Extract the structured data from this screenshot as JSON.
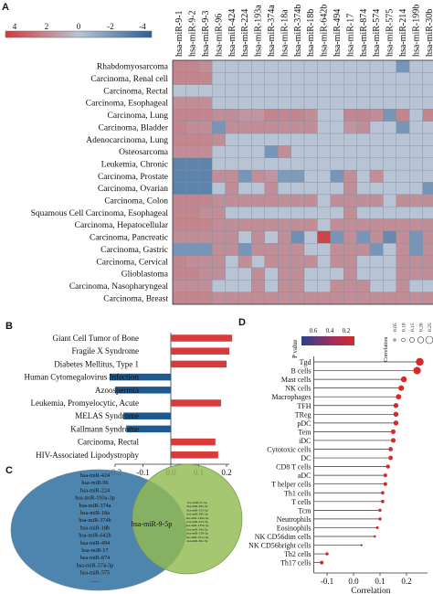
{
  "panels": {
    "a": "A",
    "b": "B",
    "c": "C",
    "d": "D"
  },
  "heatmap": {
    "type": "heatmap",
    "legend_ticks": [
      "4",
      "2",
      "0",
      "-2",
      "-4"
    ],
    "columns": [
      "hsa-miR-9-1",
      "hsa-miR-9-2",
      "hsa-miR-9-3",
      "hsa-miR-96",
      "hsa-miR-424",
      "hsa-miR-224",
      "hsa-miR-193a",
      "hsa-miR-374a",
      "hsa-miR-18a",
      "hsa-miR-374b",
      "hsa-miR-18b",
      "hsa-miR-642b",
      "hsa-miR-494",
      "hsa-miR-17",
      "hsa-miR-874",
      "hsa-miR-574",
      "hsa-miR-575",
      "hsa-miR-214",
      "hsa-miR-199b",
      "hsa-miR-30b"
    ],
    "rows": [
      "Rhabdomyosarcoma",
      "Carcinoma, Renal cell",
      "Carcinoma, Rectal",
      "Carcinoma, Esophageal",
      "Carcinoma, Lung",
      "Carcinoma, Bladder",
      "Adenocarcinoma, Lung",
      "Osteosarcoma",
      "Leukemia, Chronic",
      "Carcinoma, Prostate",
      "Carcinoma, Ovarian",
      "Carcinoma, Colon",
      "Squamous Cell Carcinoma, Esophageal",
      "Carcinoma, Hepatocellular",
      "Carcinoma, Pancreatic",
      "Carcinoma, Gastric",
      "Carcinoma, Cervical",
      "Glioblastoma",
      "Carcinoma, Nasopharyngeal",
      "Carcinoma, Breast"
    ],
    "values": [
      [
        1.6,
        1.6,
        1.4,
        0,
        0,
        0,
        0,
        0,
        0,
        0,
        0,
        0,
        0,
        0,
        0,
        0,
        0,
        -1.6,
        0,
        0
      ],
      [
        1.6,
        1.6,
        1.6,
        0,
        0,
        0,
        0,
        0,
        0,
        0,
        0,
        0,
        0,
        0,
        0,
        0,
        0,
        0,
        0,
        0
      ],
      [
        0,
        0,
        0,
        0,
        0,
        0,
        0,
        0,
        0,
        0,
        0,
        0,
        0,
        0,
        0,
        0,
        0,
        0,
        0,
        0
      ],
      [
        1.4,
        1.4,
        1.4,
        0,
        0,
        0,
        0,
        0,
        0,
        0,
        0,
        0,
        0,
        0,
        0,
        0,
        0,
        0,
        0,
        0
      ],
      [
        1.6,
        1.6,
        1.6,
        1.4,
        1.4,
        1.2,
        1.2,
        1.6,
        1.6,
        1.6,
        1.4,
        0,
        0,
        1.6,
        1.6,
        1.4,
        -1.6,
        1.6,
        0,
        1.6
      ],
      [
        1.6,
        1.4,
        1.4,
        -1.6,
        1.4,
        1.4,
        1.4,
        1.4,
        1.4,
        1.4,
        1.4,
        0,
        0,
        1.2,
        1.4,
        0,
        0,
        -1.6,
        0,
        0
      ],
      [
        1.6,
        1.6,
        1.6,
        1.4,
        0,
        0,
        0,
        0,
        0,
        0,
        0,
        0,
        0,
        0,
        0,
        0,
        0,
        0,
        0,
        0
      ],
      [
        1.4,
        1.4,
        1.4,
        0,
        0,
        0,
        0,
        -1.6,
        1.4,
        0,
        0,
        0,
        0,
        0,
        0,
        0,
        0,
        0,
        0,
        0
      ],
      [
        -2.2,
        -2.2,
        -2.2,
        0,
        0,
        0,
        0,
        0,
        0,
        0,
        0,
        0,
        0,
        0,
        0,
        0,
        0,
        0,
        0,
        0
      ],
      [
        -2.2,
        -2.2,
        -2.2,
        1.4,
        1.4,
        -1.6,
        1.4,
        1.2,
        -1.4,
        -1.4,
        0,
        0,
        -1.6,
        1.4,
        0,
        1.4,
        0,
        0,
        0,
        0
      ],
      [
        -2.2,
        -2.2,
        -2.2,
        0,
        1.4,
        0,
        0,
        1.4,
        0,
        0,
        0,
        0,
        0,
        1.4,
        0,
        0,
        0,
        0,
        0,
        -1.6
      ],
      [
        1.6,
        1.6,
        1.6,
        1.4,
        1.4,
        1.4,
        1.4,
        1.4,
        1.4,
        1.4,
        1.4,
        0,
        1.4,
        1.4,
        1.4,
        1.4,
        0,
        1.4,
        1.4,
        1.4
      ],
      [
        1.6,
        1.6,
        1.4,
        1.4,
        0,
        0,
        0,
        0,
        0,
        0,
        0,
        0,
        0,
        1.4,
        0,
        0,
        0,
        0,
        0,
        0
      ],
      [
        1.6,
        1.6,
        1.6,
        1.4,
        1.4,
        1.4,
        1.4,
        1.4,
        1.4,
        1.4,
        1.4,
        0,
        1.4,
        1.4,
        1.4,
        1.4,
        1.4,
        1.4,
        1.4,
        1.4
      ],
      [
        1.4,
        1.4,
        1.4,
        1.4,
        1.4,
        0,
        1.4,
        0,
        1.4,
        -1.8,
        0,
        3.2,
        -1.6,
        1.4,
        -1.6,
        1.4,
        -2.0,
        1.4,
        -1.6,
        1.4
      ],
      [
        -1.6,
        -1.6,
        -1.6,
        1.4,
        1.4,
        -1.6,
        1.4,
        1.4,
        1.4,
        1.4,
        0,
        0,
        1.4,
        1.4,
        1.4,
        -1.6,
        0,
        1.4,
        -1.6,
        1.4
      ],
      [
        1.6,
        1.4,
        1.4,
        1.4,
        0,
        1.4,
        0,
        1.4,
        1.4,
        1.4,
        1.4,
        0,
        1.4,
        1.4,
        0,
        0,
        0,
        1.4,
        1.4,
        1.4
      ],
      [
        1.6,
        1.6,
        1.4,
        1.4,
        0,
        0,
        1.4,
        0,
        1.4,
        1.4,
        0,
        0,
        0,
        1.4,
        0,
        0,
        0,
        1.4,
        1.4,
        1.4
      ],
      [
        1.4,
        1.4,
        1.4,
        0,
        0,
        0,
        1.4,
        0,
        1.4,
        1.4,
        0,
        0,
        1.4,
        1.4,
        1.4,
        0,
        0,
        1.4,
        0,
        0
      ],
      [
        1.6,
        1.6,
        1.6,
        1.4,
        1.4,
        1.4,
        1.4,
        1.4,
        1.4,
        1.4,
        1.4,
        1.4,
        1.4,
        1.4,
        1.4,
        1.4,
        1.4,
        1.4,
        1.4,
        1.4
      ]
    ],
    "colors": {
      "high": "#cf3b3b",
      "mid": "#b8c4d4",
      "low": "#2b5f94"
    }
  },
  "chart_b": {
    "type": "bar",
    "categories": [
      "Giant Cell Tumor of Bone",
      "Fragile X Syndrome",
      "Diabetes Mellitus, Type 1",
      "Human Cytomegalovirus Infection",
      "Azoospermia",
      "Leukemia, Promyelocytic, Acute",
      "MELAS Syndrome",
      "Kallmann Syndrome",
      "Carcinoma, Rectal",
      "HIV-Associated Lipodystrophy"
    ],
    "values": [
      0.22,
      0.21,
      0.2,
      -0.22,
      -0.2,
      0.18,
      -0.17,
      -0.16,
      0.16,
      0.17
    ],
    "xlim": [
      -0.2,
      0.2
    ],
    "xticks": [
      "-0.2",
      "-0.1",
      "0.0",
      "0.1",
      "0.2"
    ],
    "colors": {
      "positive": "#d93a3a",
      "negative": "#1e5a8e"
    }
  },
  "venn": {
    "left_items": [
      "hsa-miR-424",
      "hsa-miR-96",
      "hsa-miR-224",
      "hsa-miR-193a-3p",
      "hsa-miR-374a",
      "hsa-miR-18a",
      "hsa-miR-374b",
      "hsa-miR-18b",
      "hsa-miR-642b",
      "hsa-miR-494",
      "hsa-miR-17",
      "hsa-miR-874",
      "hsa-miR-574-5p",
      "hsa-miR-575",
      "......"
    ],
    "center_item": "hsa-miR-9-5p",
    "right_items": [
      "hsa-miR-21-5p",
      "hsa-miR-26a-5p",
      "hsa-miR-155-5p",
      "hsa-miR-29b-3p",
      "hsa-miR-146a-5p",
      "hsa-miR-223-3p",
      "hsa-miR-125b-5p",
      "hsa-miR-34a-5p",
      "hsa-miR-150-5p",
      "hsa-miR-181a-5p",
      "hsa-miR-30c-5p"
    ],
    "colors": {
      "left": "#3b78a5",
      "right": "#93bb53",
      "center_text": "#e0332b"
    }
  },
  "chart_d": {
    "type": "scatter",
    "categories": [
      "Tgd",
      "B cells",
      "Mast cells",
      "NK cells",
      "Macrophages",
      "TFH",
      "TReg",
      "pDC",
      "Tem",
      "iDC",
      "Cytotoxic cells",
      "DC",
      "CD8 T cells",
      "aDC",
      "T helper cells",
      "Th1 cells",
      "T cells",
      "Tcm",
      "Neutrophils",
      "Eosinophils",
      "NK CD56dim cells",
      "NK CD56bright cells",
      "Th2 cells",
      "Th17 cells"
    ],
    "values": [
      0.25,
      0.24,
      0.19,
      0.18,
      0.17,
      0.16,
      0.16,
      0.16,
      0.15,
      0.15,
      0.14,
      0.14,
      0.13,
      0.12,
      0.12,
      0.11,
      0.11,
      0.1,
      0.1,
      0.09,
      0.08,
      0.03,
      -0.1,
      -0.12
    ],
    "p_values": [
      0.01,
      0.01,
      0.02,
      0.02,
      0.02,
      0.03,
      0.03,
      0.03,
      0.03,
      0.04,
      0.04,
      0.04,
      0.05,
      0.05,
      0.06,
      0.06,
      0.06,
      0.07,
      0.08,
      0.08,
      0.1,
      0.4,
      0.1,
      0.08
    ],
    "xlabel": "Correlation",
    "xticks": [
      "-0.1",
      "0.0",
      "0.1",
      "0.2"
    ],
    "xlim": [
      -0.15,
      0.28
    ],
    "pvalue_title": "P value",
    "pvalue_ticks": [
      "0.6",
      "0.4",
      "0.2"
    ],
    "size_title": "Correlation",
    "size_ticks": [
      "0.05",
      "0.10",
      "0.15",
      "0.20",
      "0.25"
    ],
    "colors": {
      "dot": "#d42a2a",
      "low_p": "#2a3f8f"
    }
  }
}
